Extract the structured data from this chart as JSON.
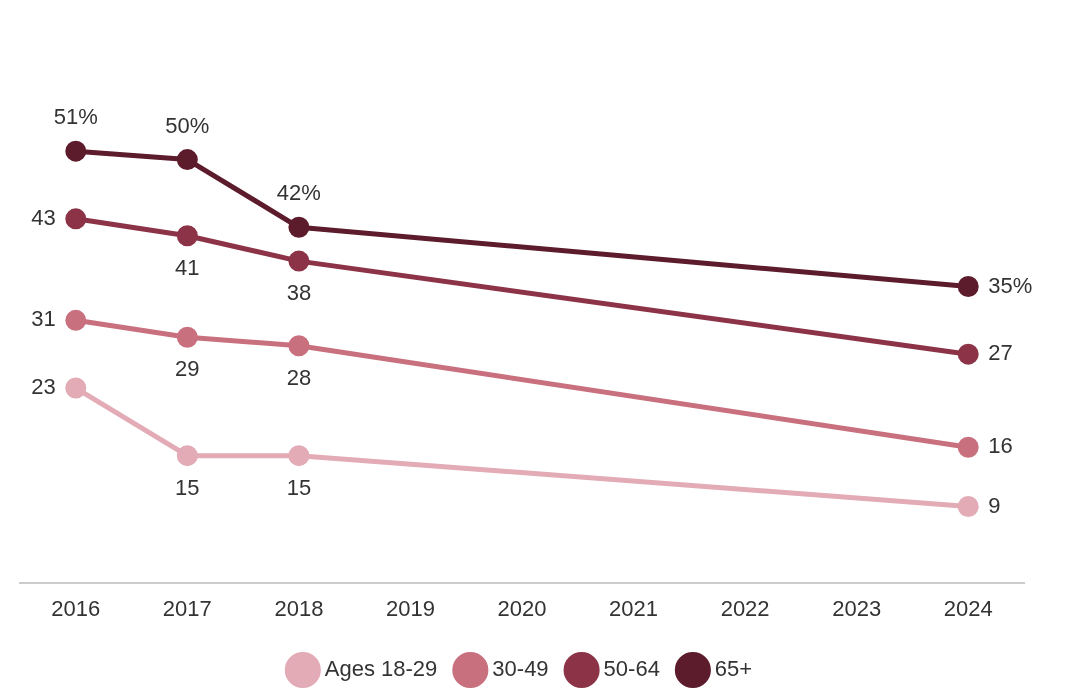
{
  "chart_data": {
    "type": "line",
    "x": [
      2016,
      2017,
      2018,
      2024
    ],
    "xlim": [
      2015.5,
      2024.5
    ],
    "xticks": [
      2016,
      2017,
      2018,
      2019,
      2020,
      2021,
      2022,
      2023,
      2024
    ],
    "tick_labels": "x",
    "grid": false,
    "legend": "bottom",
    "marker": "circle",
    "line_style": "solid",
    "series": [
      {
        "name": "Ages 18-29",
        "color": "#e2abb5",
        "values": [
          23,
          15,
          15,
          9
        ],
        "value_labels": [
          "23",
          "15",
          "15",
          "9"
        ]
      },
      {
        "name": "30-49",
        "color": "#c9707f",
        "values": [
          31,
          29,
          28,
          16
        ],
        "value_labels": [
          "31",
          "29",
          "28",
          "16"
        ]
      },
      {
        "name": "50-64",
        "color": "#8c3347",
        "values": [
          43,
          41,
          38,
          27
        ],
        "value_labels": [
          "43",
          "41",
          "38",
          "27"
        ]
      },
      {
        "name": "65+",
        "color": "#5c1c2b",
        "values": [
          51,
          50,
          42,
          35
        ],
        "value_labels": [
          "51%",
          "50%",
          "42%",
          "35%"
        ]
      }
    ]
  }
}
